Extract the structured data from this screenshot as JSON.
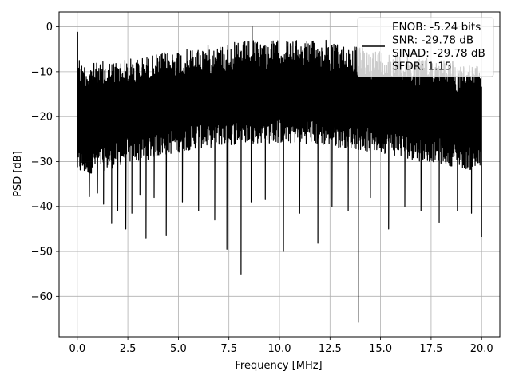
{
  "chart_data": {
    "type": "line",
    "title": "",
    "xlabel": "Frequency [MHz]",
    "ylabel": "PSD [dB]",
    "xlim": [
      -0.9,
      20.9
    ],
    "ylim": [
      -69,
      3.3
    ],
    "xticks": [
      0.0,
      2.5,
      5.0,
      7.5,
      10.0,
      12.5,
      15.0,
      17.5,
      20.0
    ],
    "xtick_labels": [
      "0.0",
      "2.5",
      "5.0",
      "7.5",
      "10.0",
      "12.5",
      "15.0",
      "17.5",
      "20.0"
    ],
    "yticks": [
      0,
      -10,
      -20,
      -30,
      -40,
      -50,
      -60
    ],
    "ytick_labels": [
      "0",
      "−10",
      "−20",
      "−30",
      "−40",
      "−50",
      "−60"
    ],
    "grid": true,
    "legend_placement": "upper-right",
    "legend_lines": [
      "ENOB: -5.24 bits",
      "SNR: -29.78 dB",
      "SINAD: -29.78 dB",
      "SFDR: 1.15"
    ],
    "series": [
      {
        "color": "#000000",
        "envelope_x": [
          0,
          0.5,
          1,
          1.5,
          2,
          2.5,
          3,
          3.5,
          4,
          4.5,
          5,
          5.5,
          6,
          6.5,
          7,
          7.5,
          8,
          8.5,
          9,
          9.5,
          10,
          10.5,
          11,
          11.5,
          12,
          12.5,
          13,
          13.5,
          14,
          14.5,
          15,
          15.5,
          16,
          16.5,
          17,
          17.5,
          18,
          18.5,
          19,
          19.5,
          20
        ],
        "envelope_upper": [
          -8,
          -8,
          -8,
          -7.5,
          -7.5,
          -7,
          -7,
          -6.5,
          -6,
          -5.5,
          -5,
          -5,
          -4.5,
          -4,
          -4,
          -3.5,
          -3.5,
          -3,
          -3,
          -3,
          -3,
          -3,
          -3,
          -3,
          -3.5,
          -3.5,
          -4,
          -4,
          -4.5,
          -5,
          -5,
          -5.5,
          -6,
          -6.5,
          -6.5,
          -7,
          -7,
          -7.5,
          -8,
          -8.5,
          -9
        ],
        "envelope_lower": [
          -33,
          -33,
          -32,
          -32,
          -31,
          -30.5,
          -30,
          -29.5,
          -29,
          -28.5,
          -28,
          -27.5,
          -27,
          -27,
          -26.5,
          -26.5,
          -26,
          -26,
          -26,
          -26,
          -26,
          -26,
          -26,
          -26,
          -26.5,
          -26.5,
          -27,
          -27,
          -27.5,
          -28,
          -28,
          -28.5,
          -29,
          -29.5,
          -30,
          -30,
          -30.5,
          -31,
          -31.5,
          -32,
          -32
        ],
        "peaks": [
          [
            0.02,
            -1.2
          ],
          [
            0.1,
            -7.5
          ],
          [
            0.3,
            -10.2
          ],
          [
            8.65,
            0.0
          ],
          [
            12.3,
            -3.0
          ]
        ],
        "dips": [
          [
            0.6,
            -37.8
          ],
          [
            1.0,
            -37.0
          ],
          [
            1.3,
            -39.5
          ],
          [
            1.7,
            -43.8
          ],
          [
            2.0,
            -41.0
          ],
          [
            2.4,
            -45.0
          ],
          [
            2.7,
            -41.5
          ],
          [
            3.1,
            -37.5
          ],
          [
            3.4,
            -47.0
          ],
          [
            3.8,
            -38.0
          ],
          [
            4.4,
            -46.5
          ],
          [
            5.2,
            -39.0
          ],
          [
            6.0,
            -41.0
          ],
          [
            6.8,
            -43.0
          ],
          [
            7.4,
            -49.5
          ],
          [
            8.1,
            -55.2
          ],
          [
            8.6,
            -39.0
          ],
          [
            9.3,
            -38.5
          ],
          [
            10.2,
            -50.0
          ],
          [
            11.0,
            -41.5
          ],
          [
            11.9,
            -48.2
          ],
          [
            12.6,
            -40.0
          ],
          [
            13.4,
            -41.0
          ],
          [
            13.9,
            -65.8
          ],
          [
            14.5,
            -38.0
          ],
          [
            15.4,
            -45.0
          ],
          [
            16.2,
            -40.0
          ],
          [
            17.0,
            -41.0
          ],
          [
            17.9,
            -43.5
          ],
          [
            18.8,
            -41.0
          ],
          [
            19.5,
            -41.5
          ],
          [
            20.0,
            -46.8
          ]
        ]
      }
    ]
  }
}
